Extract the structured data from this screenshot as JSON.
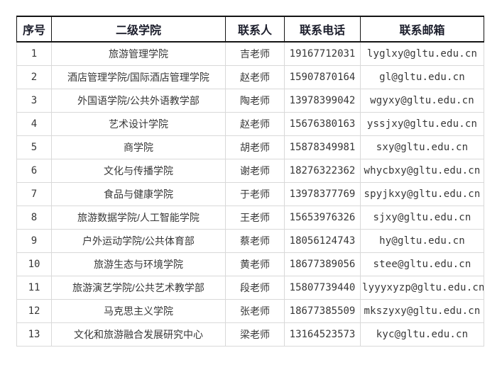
{
  "table": {
    "columns": [
      "序号",
      "二级学院",
      "联系人",
      "联系电话",
      "联系邮箱"
    ],
    "rows": [
      {
        "index": "1",
        "college": "旅游管理学院",
        "contact": "吉老师",
        "phone": "19167712031",
        "email": "lyglxy@gltu.edu.cn"
      },
      {
        "index": "2",
        "college": "酒店管理学院/国际酒店管理学院",
        "contact": "赵老师",
        "phone": "15907870164",
        "email": "gl@gltu.edu.cn"
      },
      {
        "index": "3",
        "college": "外国语学院/公共外语教学部",
        "contact": "陶老师",
        "phone": "13978399042",
        "email": "wgyxy@gltu.edu.cn"
      },
      {
        "index": "4",
        "college": "艺术设计学院",
        "contact": "赵老师",
        "phone": "15676380163",
        "email": "yssjxy@gltu.edu.cn"
      },
      {
        "index": "5",
        "college": "商学院",
        "contact": "胡老师",
        "phone": "15878349981",
        "email": "sxy@gltu.edu.cn"
      },
      {
        "index": "6",
        "college": "文化与传播学院",
        "contact": "谢老师",
        "phone": "18276322362",
        "email": "whycbxy@gltu.edu.cn"
      },
      {
        "index": "7",
        "college": "食品与健康学院",
        "contact": "于老师",
        "phone": "13978377769",
        "email": "spyjkxy@gltu.edu.cn"
      },
      {
        "index": "8",
        "college": "旅游数据学院/人工智能学院",
        "contact": "王老师",
        "phone": "15653976326",
        "email": "sjxy@gltu.edu.cn"
      },
      {
        "index": "9",
        "college": "户外运动学院/公共体育部",
        "contact": "蔡老师",
        "phone": "18056124743",
        "email": "hy@gltu.edu.cn"
      },
      {
        "index": "10",
        "college": "旅游生态与环境学院",
        "contact": "黄老师",
        "phone": "18677389056",
        "email": "stee@gltu.edu.cn"
      },
      {
        "index": "11",
        "college": "旅游演艺学院/公共艺术教学部",
        "contact": "段老师",
        "phone": "15807739440",
        "email": "lyyyxyzp@gltu.edu.cn"
      },
      {
        "index": "12",
        "college": "马克思主义学院",
        "contact": "张老师",
        "phone": "18677385509",
        "email": "mkszyxy@gltu.edu.cn"
      },
      {
        "index": "13",
        "college": "文化和旅游融合发展研究中心",
        "contact": "梁老师",
        "phone": "13164523573",
        "email": "kyc@gltu.edu.cn"
      }
    ]
  },
  "colors": {
    "header_border": "#141414",
    "body_border": "#d9d9d9",
    "header_text": "#1b1d2b",
    "body_text": "#373737",
    "background": "#ffffff"
  }
}
